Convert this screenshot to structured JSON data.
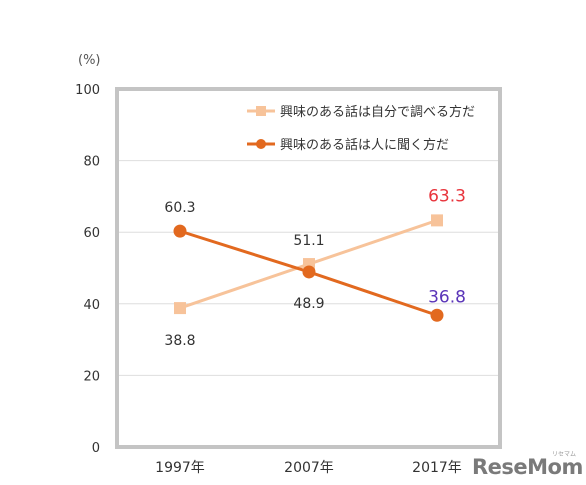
{
  "chart_data": {
    "type": "line",
    "unit_label": "(%)",
    "categories": [
      "1997年",
      "2007年",
      "2017年"
    ],
    "ylim": [
      0,
      100
    ],
    "yticks": [
      0,
      20,
      40,
      60,
      80,
      100
    ],
    "grid": true,
    "legend_position": "top-right",
    "series": [
      {
        "name": "興味のある話は自分で調べる方だ",
        "values": [
          38.8,
          51.1,
          63.3
        ],
        "labels": [
          "38.8",
          "51.1",
          "63.3"
        ],
        "color": "#f7c39a",
        "marker": "square",
        "highlight_color": "#e8343c"
      },
      {
        "name": "興味のある話は人に聞く方だ",
        "values": [
          60.3,
          48.9,
          36.8
        ],
        "labels": [
          "60.3",
          "48.9",
          "36.8"
        ],
        "color": "#e2691f",
        "marker": "circle",
        "highlight_color": "#5a34b8"
      }
    ]
  },
  "watermark": {
    "text": "ReseMom",
    "sub": "リセマム"
  }
}
